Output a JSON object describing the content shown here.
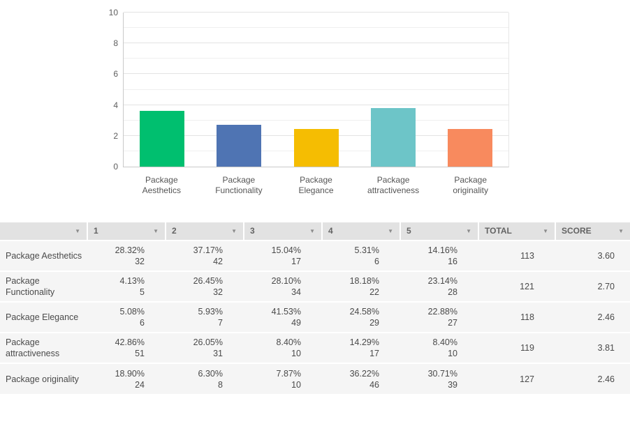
{
  "chart_data": {
    "type": "bar",
    "title": "",
    "xlabel": "",
    "ylabel": "",
    "categories": [
      "Package Aesthetics",
      "Package Functionality",
      "Package Elegance",
      "Package attractiveness",
      "Package originality"
    ],
    "values": [
      3.6,
      2.7,
      2.46,
      3.81,
      2.46
    ],
    "colors": [
      "#00bf6f",
      "#4f74b3",
      "#f5bd02",
      "#6dc5c8",
      "#f88a5e"
    ],
    "ylim": [
      0,
      10
    ],
    "yticks": [
      0,
      2,
      4,
      6,
      8,
      10
    ],
    "grid": true,
    "legend": "none"
  },
  "table": {
    "headers": [
      "",
      "1",
      "2",
      "3",
      "4",
      "5",
      "TOTAL",
      "SCORE"
    ],
    "rows": [
      {
        "label": "Package Aesthetics",
        "cells": [
          [
            "28.32%",
            "32"
          ],
          [
            "37.17%",
            "42"
          ],
          [
            "15.04%",
            "17"
          ],
          [
            "5.31%",
            "6"
          ],
          [
            "14.16%",
            "16"
          ]
        ],
        "total": "113",
        "score": "3.60"
      },
      {
        "label": "Package Functionality",
        "cells": [
          [
            "4.13%",
            "5"
          ],
          [
            "26.45%",
            "32"
          ],
          [
            "28.10%",
            "34"
          ],
          [
            "18.18%",
            "22"
          ],
          [
            "23.14%",
            "28"
          ]
        ],
        "total": "121",
        "score": "2.70"
      },
      {
        "label": "Package Elegance",
        "cells": [
          [
            "5.08%",
            "6"
          ],
          [
            "5.93%",
            "7"
          ],
          [
            "41.53%",
            "49"
          ],
          [
            "24.58%",
            "29"
          ],
          [
            "22.88%",
            "27"
          ]
        ],
        "total": "118",
        "score": "2.46"
      },
      {
        "label": "Package attractiveness",
        "cells": [
          [
            "42.86%",
            "51"
          ],
          [
            "26.05%",
            "31"
          ],
          [
            "8.40%",
            "10"
          ],
          [
            "14.29%",
            "17"
          ],
          [
            "8.40%",
            "10"
          ]
        ],
        "total": "119",
        "score": "3.81"
      },
      {
        "label": "Package originality",
        "cells": [
          [
            "18.90%",
            "24"
          ],
          [
            "6.30%",
            "8"
          ],
          [
            "7.87%",
            "10"
          ],
          [
            "36.22%",
            "46"
          ],
          [
            "30.71%",
            "39"
          ]
        ],
        "total": "127",
        "score": "2.46"
      }
    ]
  }
}
